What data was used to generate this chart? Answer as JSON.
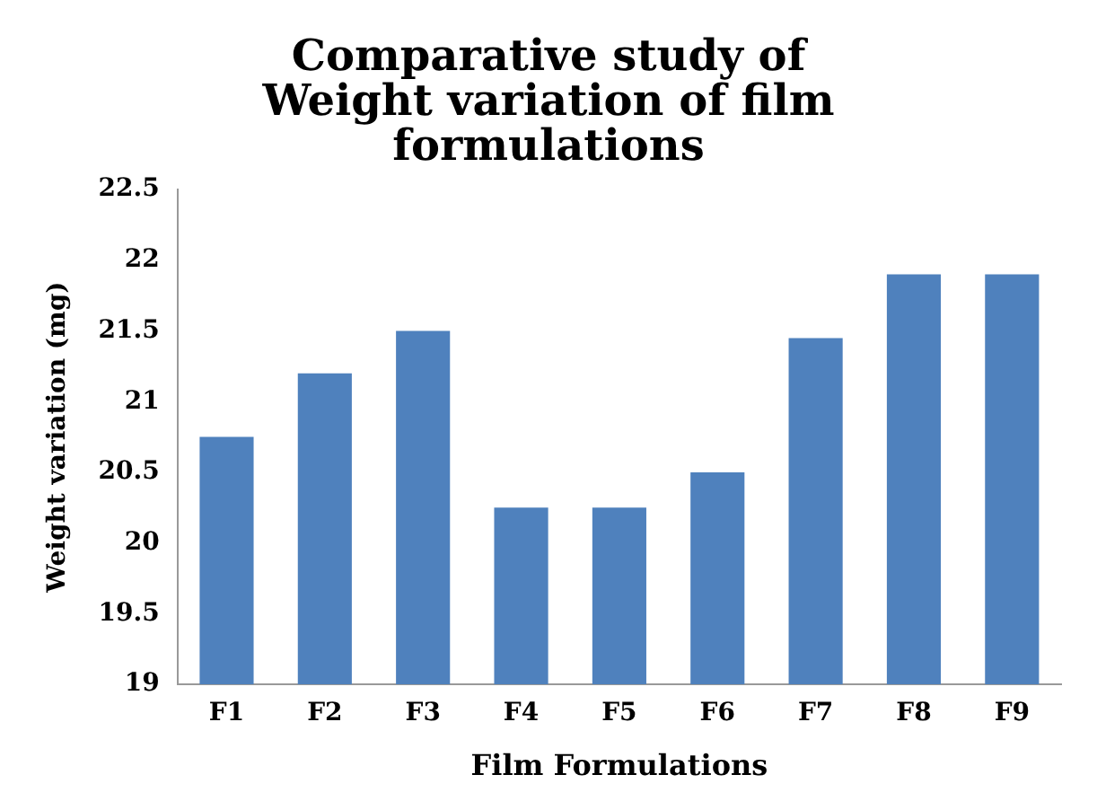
{
  "chart_data": {
    "type": "bar",
    "title": [
      "Comparative study of",
      "Weight variation of ﬁlm",
      "formulations"
    ],
    "xlabel": "Film Formulations",
    "ylabel": "Weight variation (mg)",
    "categories": [
      "F1",
      "F2",
      "F3",
      "F4",
      "F5",
      "F6",
      "F7",
      "F8",
      "F9"
    ],
    "values": [
      20.75,
      21.2,
      21.5,
      20.25,
      20.25,
      20.5,
      21.45,
      21.9,
      21.9
    ],
    "color": "#4f81bd",
    "ylim": [
      19,
      22.5
    ],
    "yticks": [
      19,
      19.5,
      20,
      20.5,
      21,
      21.5,
      22,
      22.5
    ],
    "grid": false,
    "legend": false
  }
}
